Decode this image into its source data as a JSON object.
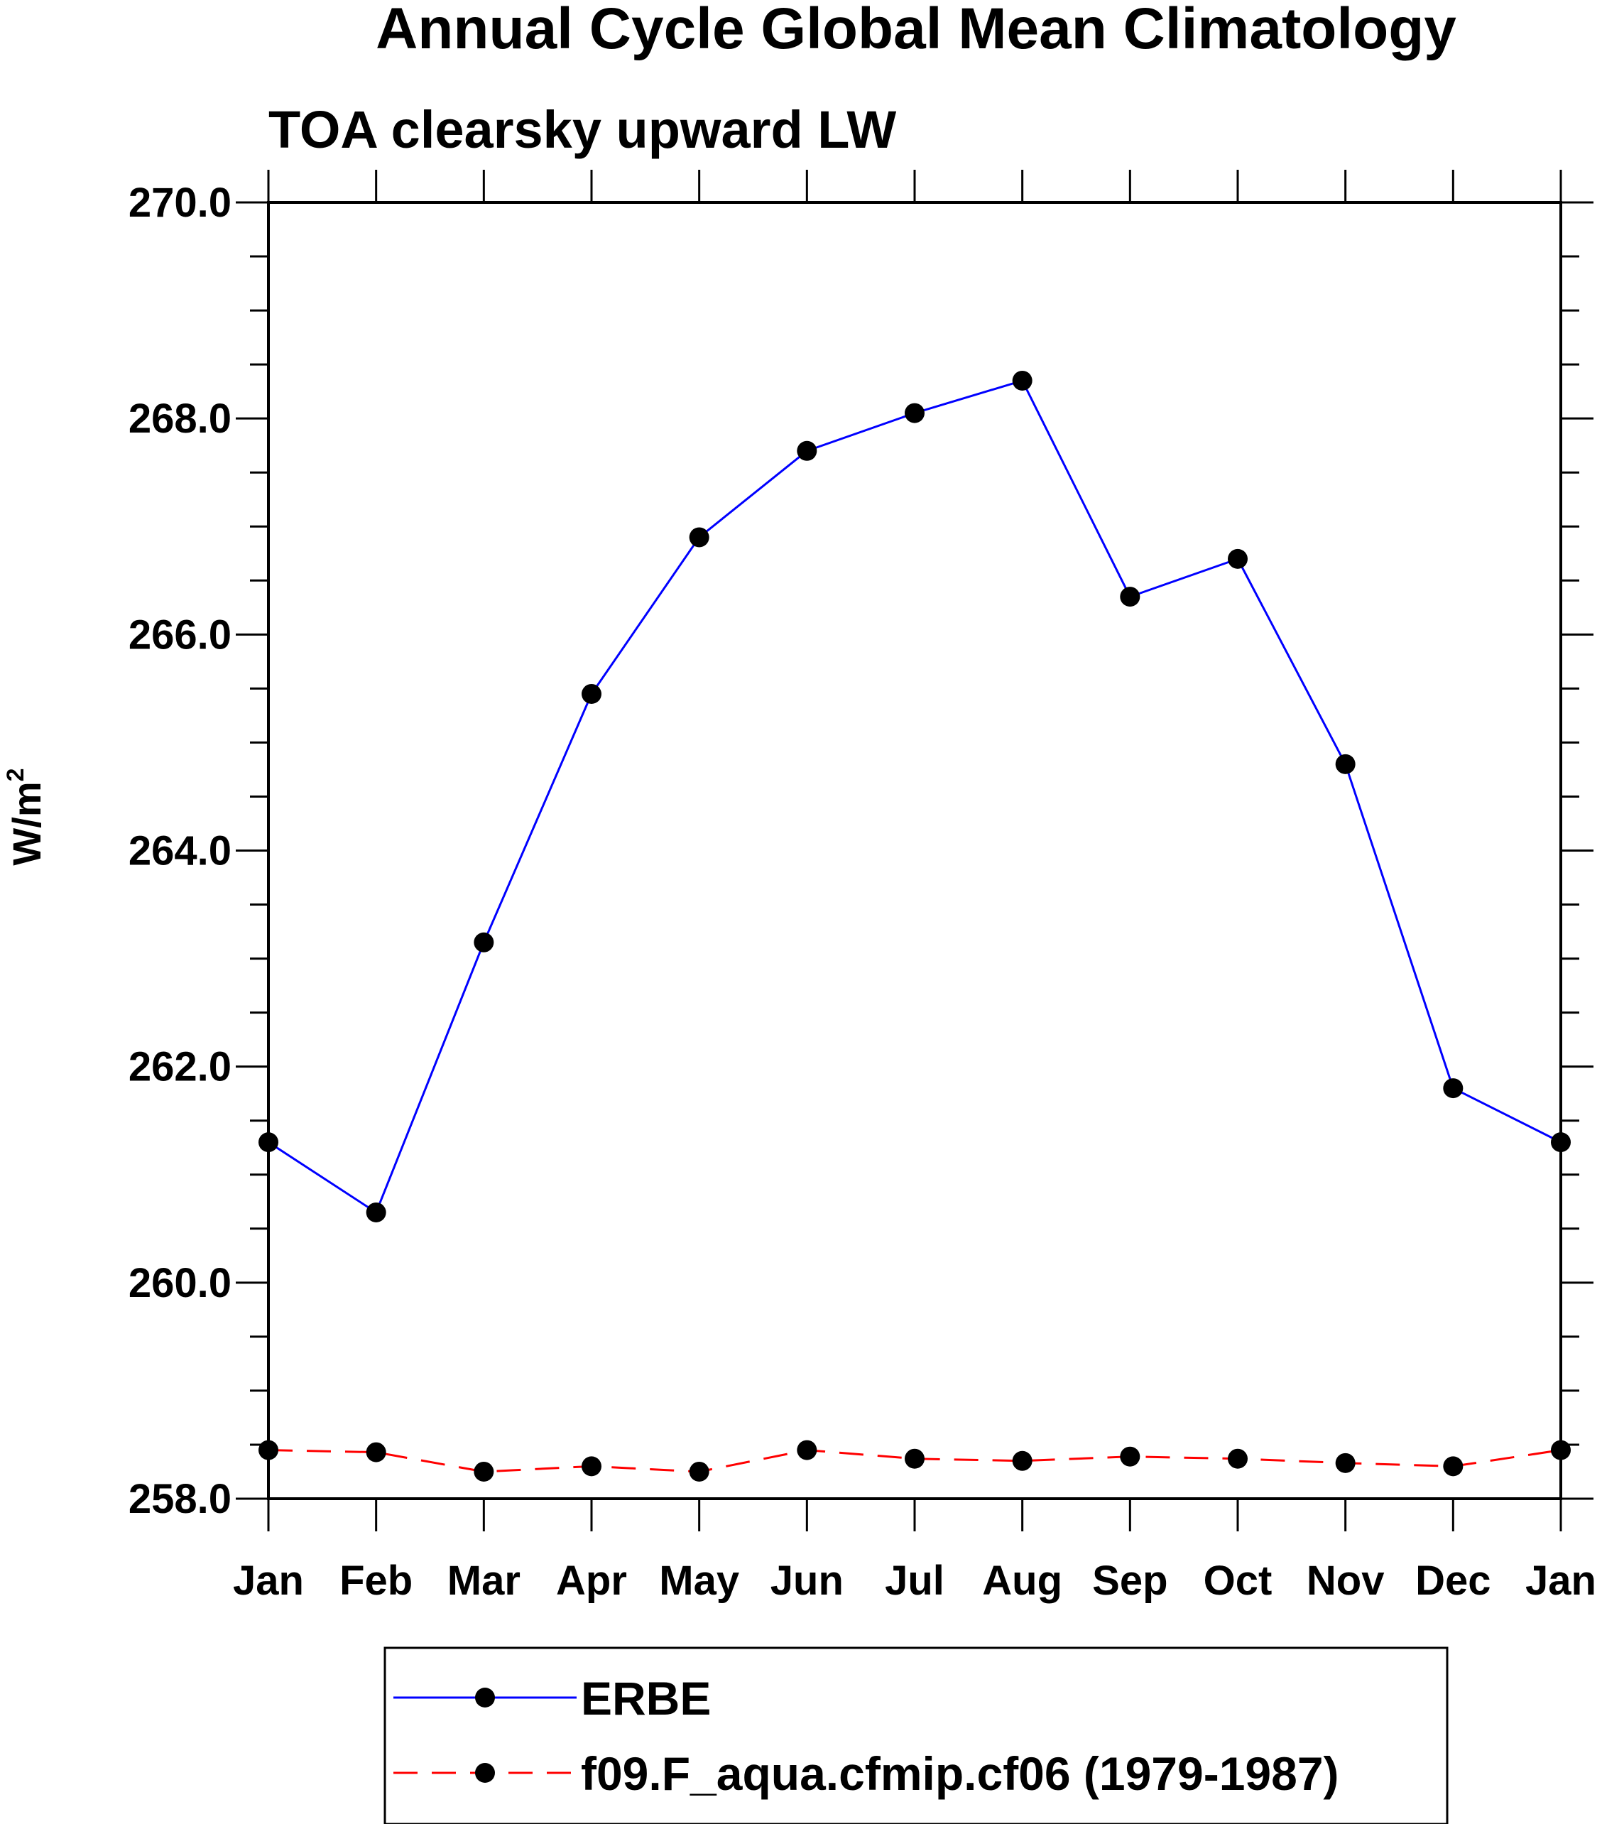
{
  "chart_data": {
    "type": "line",
    "title": "Annual Cycle Global Mean Climatology",
    "subtitle": "TOA clearsky upward LW",
    "ylabel": "W/m",
    "ylabel_superscript": "2",
    "xlabel": "",
    "categories": [
      "Jan",
      "Feb",
      "Mar",
      "Apr",
      "May",
      "Jun",
      "Jul",
      "Aug",
      "Sep",
      "Oct",
      "Nov",
      "Dec",
      "Jan"
    ],
    "ylim": [
      258.0,
      270.0
    ],
    "ytick_values": [
      258.0,
      260.0,
      262.0,
      264.0,
      266.0,
      268.0,
      270.0
    ],
    "ytick_labels": [
      "258.0",
      "260.0",
      "262.0",
      "264.0",
      "266.0",
      "268.0",
      "270.0"
    ],
    "y_minor_step": 0.5,
    "grid": false,
    "legend_position": "bottom",
    "series": [
      {
        "name": "ERBE",
        "color": "#0000ff",
        "dash": "solid",
        "marker": "filled-circle",
        "values": [
          261.3,
          260.65,
          263.15,
          265.45,
          266.9,
          267.7,
          268.05,
          268.35,
          266.35,
          266.7,
          264.8,
          261.8,
          261.3
        ]
      },
      {
        "name": "f09.F_aqua.cfmip.cf06 (1979-1987)",
        "color": "#ff0000",
        "dash": "dashed",
        "marker": "filled-circle",
        "values": [
          258.45,
          258.43,
          258.25,
          258.3,
          258.25,
          258.45,
          258.37,
          258.35,
          258.39,
          258.37,
          258.33,
          258.3,
          258.45
        ]
      }
    ]
  }
}
